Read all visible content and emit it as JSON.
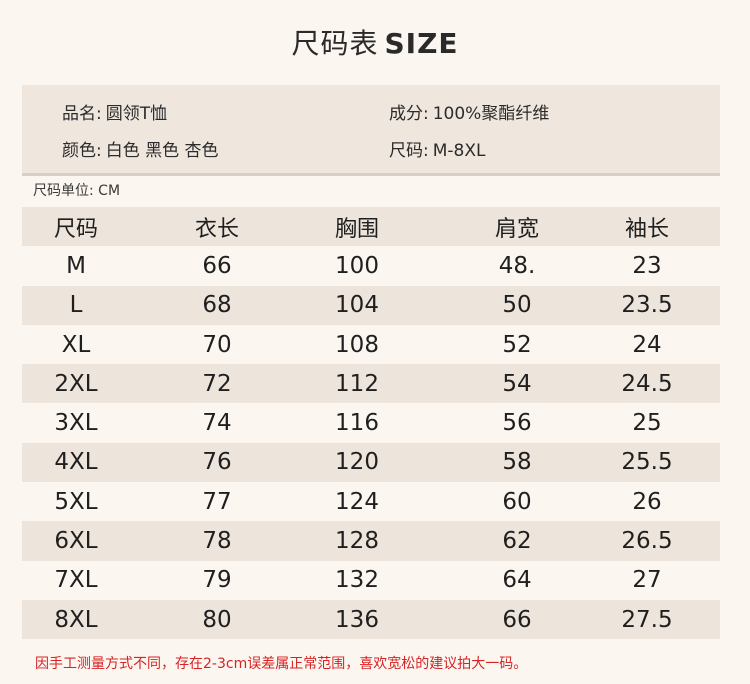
{
  "title": {
    "cn": "尺码表",
    "en": "SIZE"
  },
  "info": {
    "name_label": "品名:",
    "name_value": "圆领T恤",
    "material_label": "成分:",
    "material_value": "100%聚酯纤维",
    "color_label": "颜色:",
    "color_value": "白色 黑色 杏色",
    "size_label": "尺码:",
    "size_value": "M-8XL"
  },
  "unit_text": "尺码单位: CM",
  "table": {
    "headers": [
      "尺码",
      "衣长",
      "胸围",
      "肩宽",
      "袖长"
    ],
    "rows": [
      [
        "M",
        "66",
        "100",
        "48.",
        "23"
      ],
      [
        "L",
        "68",
        "104",
        "50",
        "23.5"
      ],
      [
        "XL",
        "70",
        "108",
        "52",
        "24"
      ],
      [
        "2XL",
        "72",
        "112",
        "54",
        "24.5"
      ],
      [
        "3XL",
        "74",
        "116",
        "56",
        "25"
      ],
      [
        "4XL",
        "76",
        "120",
        "58",
        "25.5"
      ],
      [
        "5XL",
        "77",
        "124",
        "60",
        "26"
      ],
      [
        "6XL",
        "78",
        "128",
        "62",
        "26.5"
      ],
      [
        "7XL",
        "79",
        "132",
        "64",
        "27"
      ],
      [
        "8XL",
        "80",
        "136",
        "66",
        "27.5"
      ]
    ]
  },
  "note": "因手工测量方式不同，存在2-3cm误差属正常范围，喜欢宽松的建议拍大一码。",
  "colors": {
    "background": "#fcf6f1",
    "shade": "#ede5dc",
    "note": "#d42424"
  }
}
